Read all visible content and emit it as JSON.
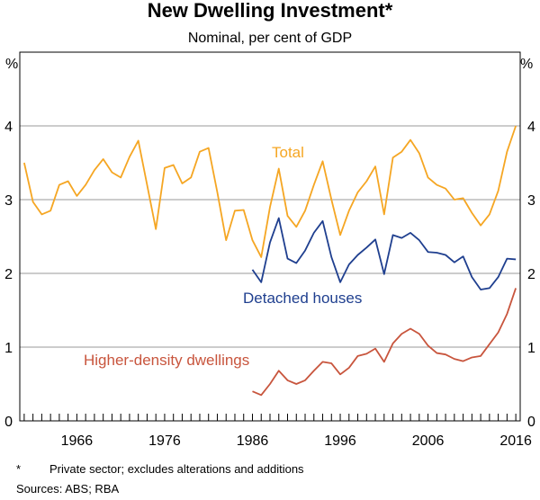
{
  "chart_data": {
    "type": "line",
    "title": "New Dwelling Investment*",
    "subtitle": "Nominal, per cent of GDP",
    "ylabel_left": "%",
    "ylabel_right": "%",
    "xlim": [
      1959.5,
      2016.5
    ],
    "ylim": [
      0,
      5
    ],
    "yticks": [
      0,
      1,
      2,
      3,
      4
    ],
    "xticks": [
      1966,
      1976,
      1986,
      1996,
      2006,
      2016
    ],
    "series": [
      {
        "name": "Total",
        "color": "#F5A623",
        "x": [
          1960,
          1961,
          1962,
          1963,
          1964,
          1965,
          1966,
          1967,
          1968,
          1969,
          1970,
          1971,
          1972,
          1973,
          1974,
          1975,
          1976,
          1977,
          1978,
          1979,
          1980,
          1981,
          1982,
          1983,
          1984,
          1985,
          1986,
          1987,
          1988,
          1989,
          1990,
          1991,
          1992,
          1993,
          1994,
          1995,
          1996,
          1997,
          1998,
          1999,
          2000,
          2001,
          2002,
          2003,
          2004,
          2005,
          2006,
          2007,
          2008,
          2009,
          2010,
          2011,
          2012,
          2013,
          2014,
          2015,
          2016
        ],
        "values": [
          3.5,
          2.97,
          2.8,
          2.85,
          3.2,
          3.25,
          3.05,
          3.2,
          3.4,
          3.55,
          3.37,
          3.3,
          3.58,
          3.8,
          3.2,
          2.6,
          3.43,
          3.47,
          3.22,
          3.3,
          3.65,
          3.7,
          3.1,
          2.45,
          2.85,
          2.86,
          2.45,
          2.22,
          2.9,
          3.42,
          2.78,
          2.63,
          2.85,
          3.2,
          3.52,
          3.0,
          2.52,
          2.85,
          3.1,
          3.25,
          3.45,
          2.8,
          3.57,
          3.65,
          3.81,
          3.63,
          3.3,
          3.2,
          3.15,
          3.0,
          3.02,
          2.82,
          2.65,
          2.8,
          3.12,
          3.65,
          4.0
        ]
      },
      {
        "name": "Detached houses",
        "color": "#1F3F8F",
        "x": [
          1986,
          1987,
          1988,
          1989,
          1990,
          1991,
          1992,
          1993,
          1994,
          1995,
          1996,
          1997,
          1998,
          1999,
          2000,
          2001,
          2002,
          2003,
          2004,
          2005,
          2006,
          2007,
          2008,
          2009,
          2010,
          2011,
          2012,
          2013,
          2014,
          2015,
          2016
        ],
        "values": [
          2.05,
          1.88,
          2.42,
          2.75,
          2.2,
          2.14,
          2.31,
          2.55,
          2.71,
          2.22,
          1.88,
          2.12,
          2.25,
          2.35,
          2.46,
          1.99,
          2.52,
          2.48,
          2.55,
          2.45,
          2.29,
          2.28,
          2.25,
          2.15,
          2.23,
          1.95,
          1.78,
          1.8,
          1.95,
          2.2,
          2.19
        ]
      },
      {
        "name": "Higher-density dwellings",
        "color": "#C8553D",
        "x": [
          1986,
          1987,
          1988,
          1989,
          1990,
          1991,
          1992,
          1993,
          1994,
          1995,
          1996,
          1997,
          1998,
          1999,
          2000,
          2001,
          2002,
          2003,
          2004,
          2005,
          2006,
          2007,
          2008,
          2009,
          2010,
          2011,
          2012,
          2013,
          2014,
          2015,
          2016
        ],
        "values": [
          0.4,
          0.35,
          0.5,
          0.68,
          0.55,
          0.5,
          0.55,
          0.68,
          0.8,
          0.78,
          0.63,
          0.72,
          0.88,
          0.91,
          0.98,
          0.8,
          1.05,
          1.18,
          1.25,
          1.18,
          1.02,
          0.92,
          0.9,
          0.84,
          0.81,
          0.86,
          0.88,
          1.04,
          1.2,
          1.45,
          1.8
        ]
      }
    ],
    "series_labels": {
      "total": "Total",
      "detached": "Detached houses",
      "higher_density": "Higher-density dwellings"
    }
  },
  "footnotes": {
    "marker": "*",
    "note": "Private sector; excludes alterations and additions",
    "sources": "Sources: ABS; RBA"
  }
}
